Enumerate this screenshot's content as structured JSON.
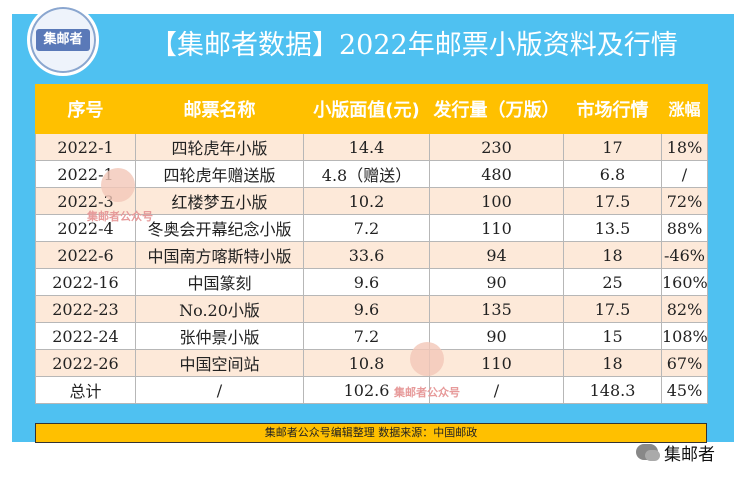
{
  "logo": {
    "text": "集邮者"
  },
  "title": "【集邮者数据】2022年邮票小版资料及行情",
  "table": {
    "headers": [
      "序号",
      "邮票名称",
      "小版面值(元)",
      "发行量（万版）",
      "市场行情",
      "涨幅"
    ],
    "rows": [
      [
        "2022-1",
        "四轮虎年小版",
        "14.4",
        "230",
        "17",
        "18%"
      ],
      [
        "2022-1",
        "四轮虎年赠送版",
        "4.8（赠送）",
        "480",
        "6.8",
        "/"
      ],
      [
        "2022-3",
        "红楼梦五小版",
        "10.2",
        "100",
        "17.5",
        "72%"
      ],
      [
        "2022-4",
        "冬奥会开幕纪念小版",
        "7.2",
        "110",
        "13.5",
        "88%"
      ],
      [
        "2022-6",
        "中国南方喀斯特小版",
        "33.6",
        "94",
        "18",
        "-46%"
      ],
      [
        "2022-16",
        "中国篆刻",
        "9.6",
        "90",
        "25",
        "160%"
      ],
      [
        "2022-23",
        "No.20小版",
        "9.6",
        "135",
        "17.5",
        "82%"
      ],
      [
        "2022-24",
        "张仲景小版",
        "7.2",
        "90",
        "15",
        "108%"
      ],
      [
        "2022-26",
        "中国空间站",
        "10.8",
        "110",
        "18",
        "67%"
      ],
      [
        "总计",
        "/",
        "102.6",
        "/",
        "148.3",
        "45%"
      ]
    ]
  },
  "footer": "集邮者公众号编辑整理 数据来源：中国邮政",
  "watermark": "集邮者公众号",
  "brand": {
    "name": "集邮者"
  }
}
